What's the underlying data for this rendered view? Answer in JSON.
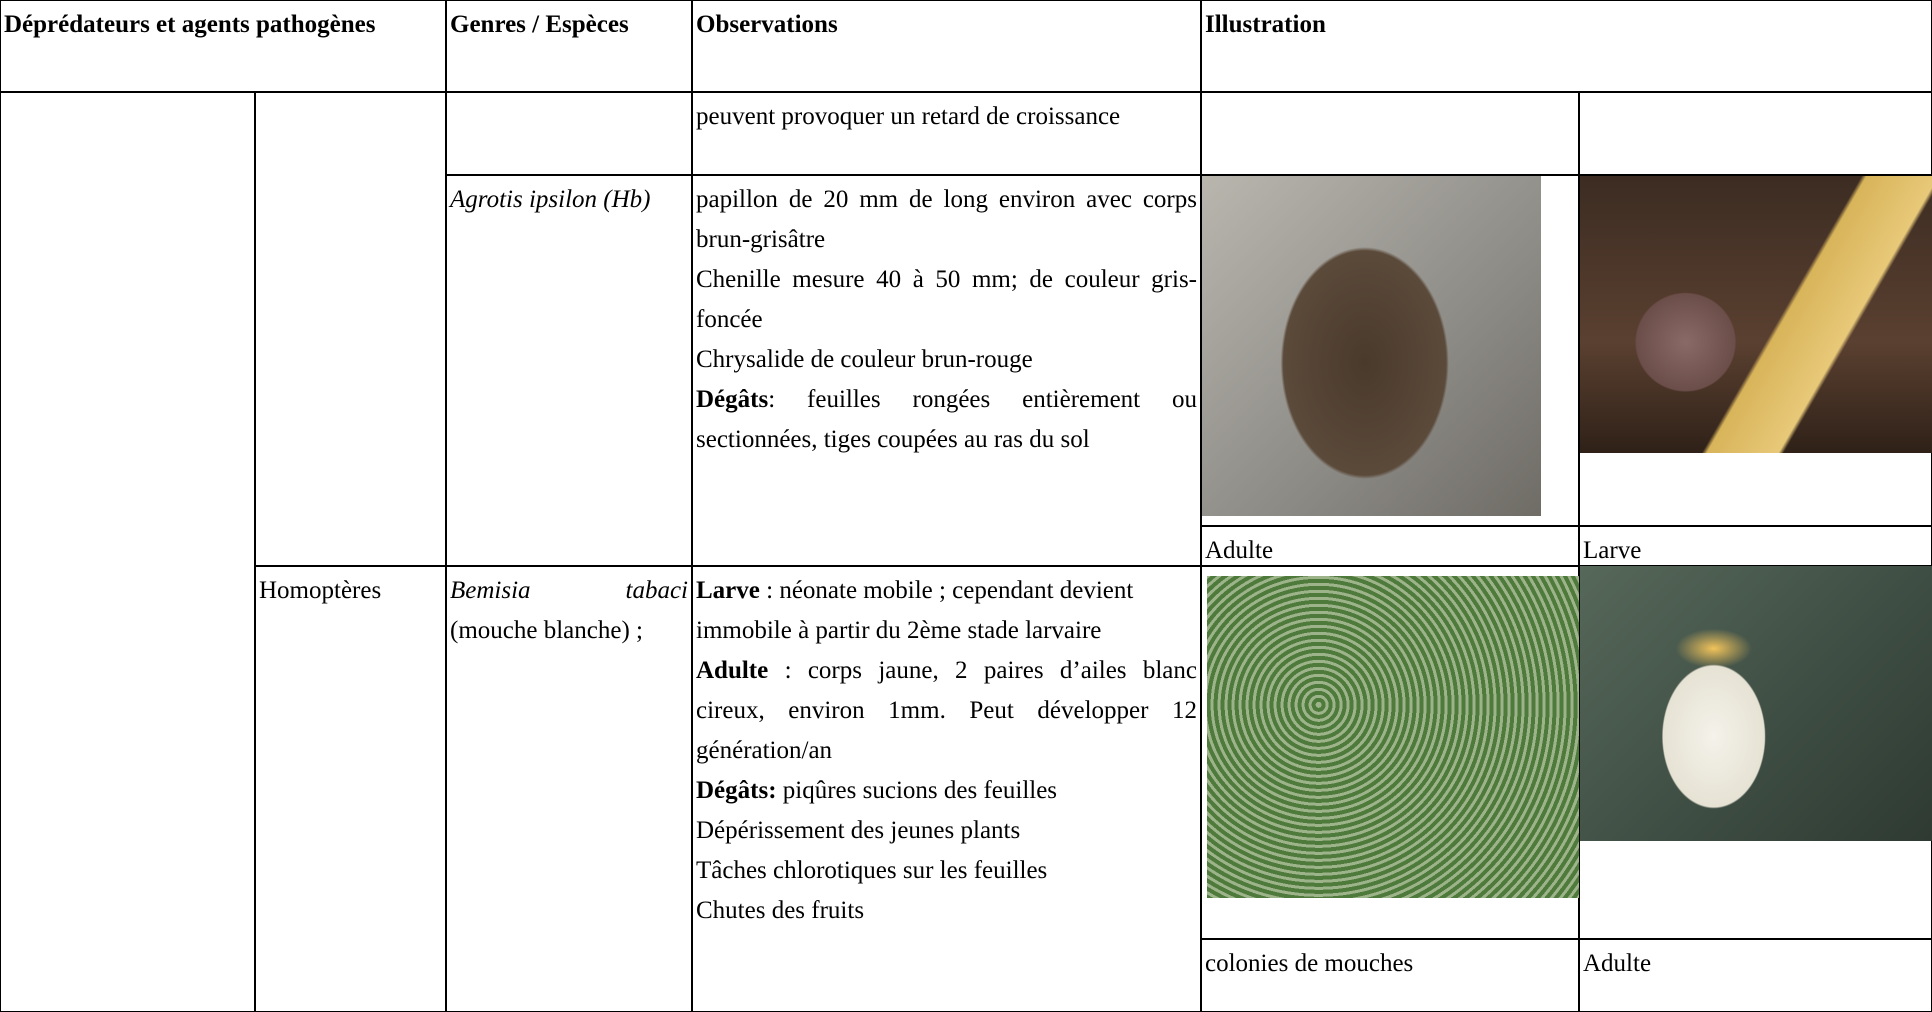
{
  "header": [
    "Déprédateurs et agents pathogènes",
    "Genres / Espèces",
    "Observations",
    "Illustration"
  ],
  "rows": [
    {
      "observations": [
        "peuvent provoquer un retard de croissance"
      ]
    },
    {
      "species": "Agrotis ipsilon (Hb)",
      "observations": [
        "papillon de 20 mm de long environ avec corps brun-grisâtre",
        "Chenille mesure 40 à 50 mm; de couleur gris-foncée",
        "Chrysalide de couleur brun-rouge",
        {
          "bold": "Dégâts",
          "text": ": feuilles rongées entièrement ou sectionnées, tiges coupées au ras du sol"
        }
      ],
      "captions": [
        "Adulte",
        "Larve"
      ]
    },
    {
      "order": "Homoptères",
      "species": "Bemisia tabaci",
      "species_note": "(mouche blanche) ;",
      "observations": [
        {
          "bold": "Larve",
          "text": " : néonate mobile ; cependant devient"
        },
        "immobile à partir du 2ème stade larvaire",
        {
          "bold": "Adulte",
          "text": " : corps jaune, 2 paires d’ailes blanc cireux, environ 1mm. Peut développer 12 génération/an"
        },
        {
          "bold": "Dégâts:",
          "text": " piqûres sucions des feuilles"
        },
        "Dépérissement des jeunes plants",
        "Tâches chlorotiques sur les feuilles",
        "Chutes des fruits"
      ],
      "captions": [
        "colonies de mouches",
        "Adulte"
      ]
    }
  ]
}
